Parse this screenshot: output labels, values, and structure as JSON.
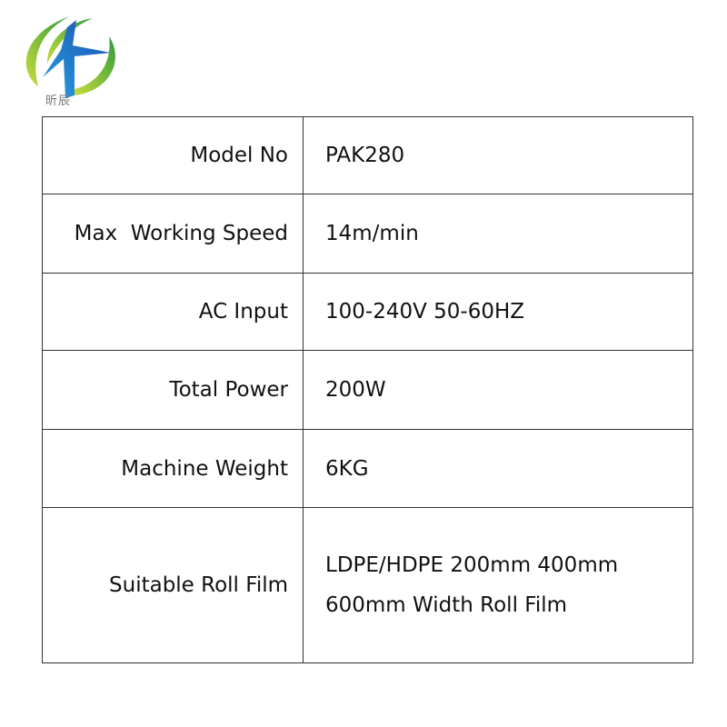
{
  "logo": {
    "text": "昕辰",
    "colors": {
      "green": "#5bb030",
      "blue": "#1f74c8"
    }
  },
  "specs": [
    {
      "label": "Model No",
      "value": "PAK280"
    },
    {
      "label": "Max  Working Speed",
      "value": "14m/min"
    },
    {
      "label": "AC Input",
      "value": "100-240V 50-60HZ"
    },
    {
      "label": "Total Power",
      "value": "200W"
    },
    {
      "label": "Machine Weight",
      "value": "6KG"
    },
    {
      "label": "Suitable Roll Film",
      "value": "LDPE/HDPE 200mm 400mm 600mm Width Roll Film"
    }
  ]
}
